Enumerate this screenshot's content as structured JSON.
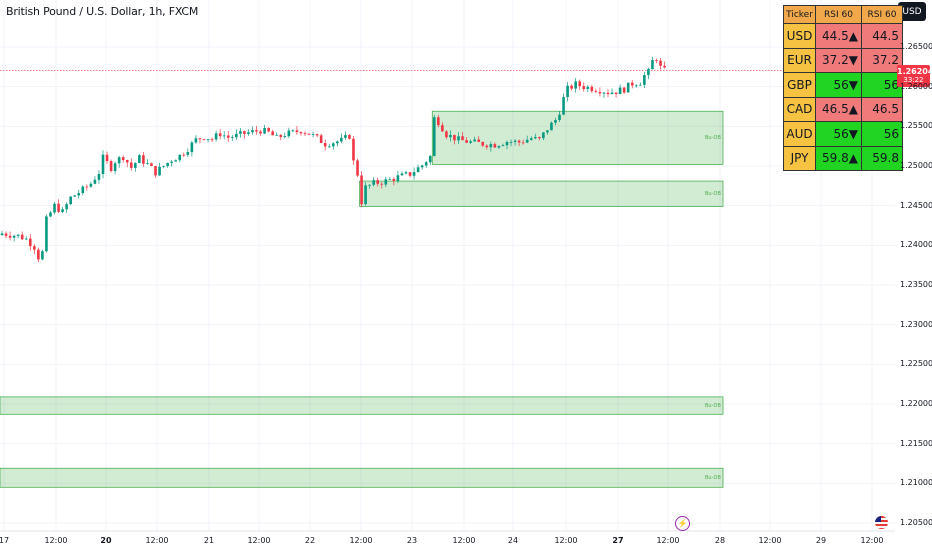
{
  "header": {
    "title": "British Pound / U.S. Dollar, 1h, FXCM",
    "currency_button": "USD"
  },
  "price_label": {
    "price": "1.26204",
    "countdown": "33:22"
  },
  "rsi_table": {
    "headers": [
      "Ticker",
      "RSI 60",
      "RSI 60"
    ],
    "rows": [
      {
        "ticker": "USD",
        "rsi": "44.5▲",
        "rsi2": "44.5",
        "color": "#f07a7a"
      },
      {
        "ticker": "EUR",
        "rsi": "37.2▼",
        "rsi2": "37.2",
        "color": "#f07a7a"
      },
      {
        "ticker": "GBP",
        "rsi": "56▼",
        "rsi2": "56",
        "color": "#22d422"
      },
      {
        "ticker": "CAD",
        "rsi": "46.5▲",
        "rsi2": "46.5",
        "color": "#f07a7a"
      },
      {
        "ticker": "AUD",
        "rsi": "56▼",
        "rsi2": "56",
        "color": "#22d422"
      },
      {
        "ticker": "JPY",
        "rsi": "59.8▲",
        "rsi2": "59.8",
        "color": "#22d422"
      }
    ]
  },
  "zone_labels": [
    "Bu-OB",
    "Bu-OB",
    "Bu-OB",
    "Bu-OB"
  ],
  "icons": {
    "events": "lightning-icon",
    "country": "us-flag-icon"
  },
  "chart_data": {
    "type": "candlestick",
    "symbol": "GBPUSD",
    "y_axis": {
      "ticks": [
        1.265,
        1.26,
        1.255,
        1.25,
        1.245,
        1.24,
        1.235,
        1.23,
        1.225,
        1.22,
        1.215,
        1.21,
        1.205
      ],
      "tick_labels": [
        "1.26500",
        "1.26000",
        "1.25500",
        "1.25000",
        "1.24500",
        "1.24000",
        "1.23500",
        "1.23000",
        "1.22500",
        "1.22000",
        "1.21500",
        "1.21000",
        "1.20500"
      ],
      "range": [
        1.2045,
        1.2695
      ]
    },
    "x_axis": {
      "tick_labels": [
        "17",
        "12:00",
        "20",
        "12:00",
        "21",
        "12:00",
        "22",
        "12:00",
        "23",
        "12:00",
        "24",
        "12:00",
        "27",
        "12:00",
        "28",
        "12:00",
        "29",
        "12:00"
      ],
      "bold_labels": [
        "20",
        "27"
      ]
    },
    "last_price": 1.26204,
    "zones": [
      {
        "name": "Bu-OB",
        "from_bar": 107,
        "to_bar": "end",
        "top": 1.2569,
        "bottom": 1.2502
      },
      {
        "name": "Bu-OB",
        "from_bar": 89,
        "to_bar": "end",
        "top": 1.2481,
        "bottom": 1.2449
      },
      {
        "name": "Bu-OB",
        "from_bar": 0,
        "to_bar": "end",
        "top": 1.2209,
        "bottom": 1.2187
      },
      {
        "name": "Bu-OB",
        "from_bar": 0,
        "to_bar": "end",
        "top": 1.2119,
        "bottom": 1.2095
      }
    ],
    "close_path": [
      [
        0,
        1.2415
      ],
      [
        4,
        1.2412
      ],
      [
        6,
        1.2408
      ],
      [
        8,
        1.2398
      ],
      [
        9,
        1.2385
      ],
      [
        10,
        1.2391
      ],
      [
        11,
        1.2432
      ],
      [
        13,
        1.245
      ],
      [
        15,
        1.2442
      ],
      [
        17,
        1.246
      ],
      [
        20,
        1.247
      ],
      [
        22,
        1.2478
      ],
      [
        24,
        1.2492
      ],
      [
        25,
        1.251
      ],
      [
        27,
        1.2498
      ],
      [
        28,
        1.2506
      ],
      [
        30,
        1.2512
      ],
      [
        32,
        1.2498
      ],
      [
        34,
        1.251
      ],
      [
        36,
        1.2502
      ],
      [
        38,
        1.2492
      ],
      [
        40,
        1.25
      ],
      [
        42,
        1.2508
      ],
      [
        44,
        1.2513
      ],
      [
        46,
        1.2522
      ],
      [
        48,
        1.2533
      ],
      [
        50,
        1.2537
      ],
      [
        52,
        1.2534
      ],
      [
        54,
        1.2541
      ],
      [
        56,
        1.2536
      ],
      [
        58,
        1.2538
      ],
      [
        60,
        1.2541
      ],
      [
        62,
        1.2543
      ],
      [
        64,
        1.2545
      ],
      [
        66,
        1.2542
      ],
      [
        68,
        1.2535
      ],
      [
        70,
        1.254
      ],
      [
        72,
        1.2542
      ],
      [
        74,
        1.2545
      ],
      [
        76,
        1.2541
      ],
      [
        78,
        1.2535
      ],
      [
        80,
        1.2528
      ],
      [
        82,
        1.253
      ],
      [
        84,
        1.2532
      ],
      [
        86,
        1.2538
      ],
      [
        87,
        1.2505
      ],
      [
        88,
        1.249
      ],
      [
        89,
        1.2455
      ],
      [
        90,
        1.2473
      ],
      [
        92,
        1.2478
      ],
      [
        95,
        1.2481
      ],
      [
        98,
        1.2486
      ],
      [
        101,
        1.249
      ],
      [
        104,
        1.2501
      ],
      [
        106,
        1.2512
      ],
      [
        107,
        1.256
      ],
      [
        108,
        1.2556
      ],
      [
        110,
        1.254
      ],
      [
        113,
        1.2533
      ],
      [
        116,
        1.253
      ],
      [
        119,
        1.2528
      ],
      [
        122,
        1.2527
      ],
      [
        125,
        1.2531
      ],
      [
        128,
        1.253
      ],
      [
        131,
        1.2535
      ],
      [
        133,
        1.2533
      ],
      [
        135,
        1.2547
      ],
      [
        137,
        1.2558
      ],
      [
        138,
        1.2569
      ],
      [
        139,
        1.2585
      ],
      [
        140,
        1.2597
      ],
      [
        142,
        1.2603
      ],
      [
        144,
        1.26
      ],
      [
        146,
        1.2598
      ],
      [
        148,
        1.2596
      ],
      [
        150,
        1.2593
      ],
      [
        152,
        1.2594
      ],
      [
        154,
        1.2597
      ],
      [
        156,
        1.2604
      ],
      [
        158,
        1.2606
      ],
      [
        159,
        1.2614
      ],
      [
        160,
        1.2618
      ],
      [
        161,
        1.2632
      ],
      [
        162,
        1.2636
      ],
      [
        163,
        1.2624
      ],
      [
        164,
        1.262
      ]
    ]
  }
}
